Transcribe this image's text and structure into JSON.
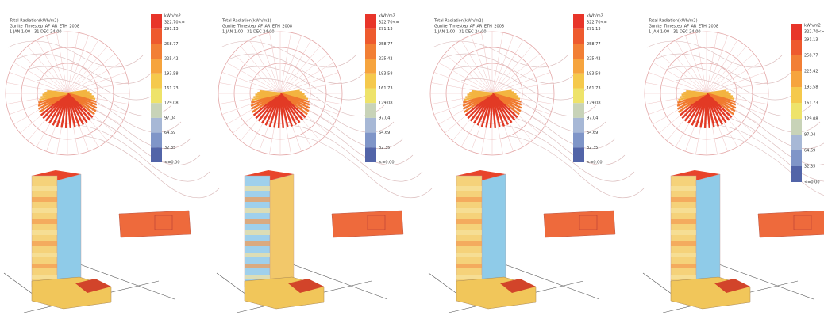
{
  "panels": [
    {
      "title_lines": [
        "Total Radiation(kWh/m2)",
        "Gunite_Timestep_AF_AR_ETH_2008",
        "1 JAN 1:00 - 31 DEC 24:00"
      ],
      "legend": {
        "header": "kWh/m2",
        "labels": [
          "322.70<=",
          "291.13",
          "258.77",
          "225.42",
          "193.58",
          "161.73",
          "129.08",
          "97.04",
          "64.69",
          "32.35",
          "<=0.00"
        ]
      }
    },
    {
      "title_lines": [
        "Total Radiation(kWh/m2)",
        "Gunite_Timestep_AF_AR_ETH_2008",
        "1 JAN 1:00 - 31 DEC 24:00"
      ],
      "legend": {
        "header": "kWh/m2",
        "labels": [
          "322.70<=",
          "291.13",
          "258.77",
          "225.42",
          "193.58",
          "161.73",
          "129.08",
          "97.04",
          "64.69",
          "32.35",
          "<=0.00"
        ]
      }
    },
    {
      "title_lines": [
        "Total Radiation(kWh/m2)",
        "Gunite_Timestep_AF_AR_ETH_2008",
        "1 JAN 1:00 - 31 DEC 24:00"
      ],
      "legend": {
        "header": "kWh/m2",
        "labels": [
          "322.70<=",
          "291.13",
          "258.77",
          "225.42",
          "193.58",
          "161.73",
          "129.08",
          "97.04",
          "64.69",
          "32.35",
          "<=0.00"
        ]
      }
    },
    {
      "title_lines": [
        "Total Radiation(kWh/m2)",
        "Gunite_Timestep_AF_AR_ETH_2008",
        "1 JAN 1:00 - 31 DEC 24:00"
      ],
      "legend": {
        "header": "kWh/m2",
        "labels": [
          "322.70<=",
          "291.13",
          "258.77",
          "225.42",
          "193.58",
          "161.73",
          "129.08",
          "97.04",
          "64.69",
          "32.35",
          "<=0.00"
        ]
      }
    }
  ]
}
